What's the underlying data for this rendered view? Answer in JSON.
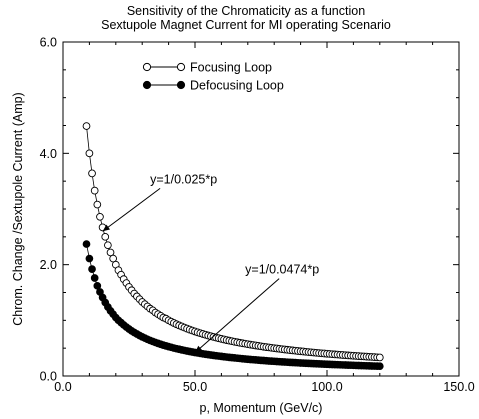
{
  "chart_data": {
    "type": "scatter",
    "title": "Sensitivity of the Chromaticity as a function",
    "subtitle": "Sextupole Magnet Current for  MI operating Scenario",
    "xlabel": "p, Momentum (GeV/c)",
    "ylabel": "Chrom. Change /Sextupole Current (Amp)",
    "xlim": [
      0,
      150
    ],
    "ylim": [
      0,
      6
    ],
    "x_ticks": [
      "0.0",
      "50.0",
      "100.0",
      "150.0"
    ],
    "y_ticks": [
      "0.0",
      "2.0",
      "4.0",
      "6.0"
    ],
    "grid": false,
    "legend_position": "top-left",
    "x": [
      8.9,
      10,
      11,
      12,
      13,
      14,
      15,
      16,
      17,
      18,
      19,
      20,
      21,
      22,
      23,
      24,
      25,
      26,
      27,
      28,
      29,
      30,
      31,
      32,
      33,
      34,
      35,
      36,
      37,
      38,
      39,
      40,
      41,
      42,
      43,
      44,
      45,
      46,
      47,
      48,
      49,
      50,
      51,
      52,
      53,
      54,
      55,
      56,
      57,
      58,
      59,
      60,
      61,
      62,
      63,
      64,
      65,
      66,
      67,
      68,
      69,
      70,
      71,
      72,
      73,
      74,
      75,
      76,
      77,
      78,
      79,
      80,
      81,
      82,
      83,
      84,
      85,
      86,
      87,
      88,
      89,
      90,
      91,
      92,
      93,
      94,
      95,
      96,
      97,
      98,
      99,
      100,
      101,
      102,
      103,
      104,
      105,
      106,
      107,
      108,
      109,
      110,
      111,
      112,
      113,
      114,
      115,
      116,
      117,
      118,
      119,
      120
    ],
    "series": [
      {
        "name": "Focusing Loop",
        "marker": "open-circle",
        "color": "#000000",
        "values": [
          4.49,
          4.0,
          3.64,
          3.33,
          3.08,
          2.86,
          2.67,
          2.5,
          2.35,
          2.22,
          2.11,
          2.0,
          1.9,
          1.82,
          1.74,
          1.67,
          1.6,
          1.54,
          1.48,
          1.43,
          1.38,
          1.33,
          1.29,
          1.25,
          1.21,
          1.18,
          1.14,
          1.11,
          1.08,
          1.05,
          1.03,
          1.0,
          0.976,
          0.952,
          0.93,
          0.909,
          0.889,
          0.87,
          0.851,
          0.833,
          0.816,
          0.8,
          0.784,
          0.769,
          0.755,
          0.741,
          0.727,
          0.714,
          0.702,
          0.69,
          0.678,
          0.667,
          0.656,
          0.645,
          0.635,
          0.625,
          0.615,
          0.606,
          0.597,
          0.588,
          0.58,
          0.571,
          0.563,
          0.556,
          0.548,
          0.541,
          0.533,
          0.526,
          0.519,
          0.513,
          0.506,
          0.5,
          0.494,
          0.488,
          0.482,
          0.476,
          0.471,
          0.465,
          0.46,
          0.455,
          0.449,
          0.444,
          0.44,
          0.435,
          0.43,
          0.426,
          0.421,
          0.417,
          0.412,
          0.408,
          0.404,
          0.4,
          0.396,
          0.392,
          0.388,
          0.385,
          0.381,
          0.377,
          0.374,
          0.37,
          0.367,
          0.364,
          0.36,
          0.357,
          0.354,
          0.351,
          0.348,
          0.345,
          0.342,
          0.339,
          0.336,
          0.333
        ]
      },
      {
        "name": "Defocusing Loop",
        "marker": "filled-circle",
        "color": "#000000",
        "values": [
          2.37,
          2.11,
          1.92,
          1.76,
          1.62,
          1.51,
          1.41,
          1.32,
          1.24,
          1.17,
          1.11,
          1.05,
          1.0,
          0.959,
          0.917,
          0.879,
          0.844,
          0.811,
          0.781,
          0.754,
          0.727,
          0.703,
          0.681,
          0.659,
          0.639,
          0.621,
          0.603,
          0.586,
          0.57,
          0.555,
          0.541,
          0.527,
          0.515,
          0.502,
          0.491,
          0.48,
          0.469,
          0.459,
          0.449,
          0.44,
          0.431,
          0.422,
          0.414,
          0.406,
          0.398,
          0.391,
          0.384,
          0.377,
          0.37,
          0.364,
          0.358,
          0.352,
          0.346,
          0.34,
          0.335,
          0.33,
          0.325,
          0.32,
          0.315,
          0.31,
          0.306,
          0.301,
          0.297,
          0.293,
          0.289,
          0.285,
          0.281,
          0.278,
          0.274,
          0.27,
          0.267,
          0.264,
          0.26,
          0.257,
          0.254,
          0.251,
          0.248,
          0.245,
          0.243,
          0.24,
          0.237,
          0.234,
          0.232,
          0.229,
          0.227,
          0.224,
          0.222,
          0.22,
          0.218,
          0.215,
          0.213,
          0.211,
          0.209,
          0.207,
          0.205,
          0.203,
          0.201,
          0.199,
          0.197,
          0.195,
          0.194,
          0.192,
          0.19,
          0.188,
          0.187,
          0.185,
          0.183,
          0.182,
          0.18,
          0.179,
          0.177,
          0.176
        ]
      }
    ],
    "annotations": [
      {
        "text": "y=1/0.025*p",
        "series": "Focusing Loop",
        "arrow_to": [
          15,
          2.6
        ],
        "label_at": [
          33,
          3.46
        ]
      },
      {
        "text": "y=1/0.0474*p",
        "series": "Defocusing Loop",
        "arrow_to": [
          50,
          0.42
        ],
        "label_at": [
          69,
          1.84
        ]
      }
    ]
  }
}
